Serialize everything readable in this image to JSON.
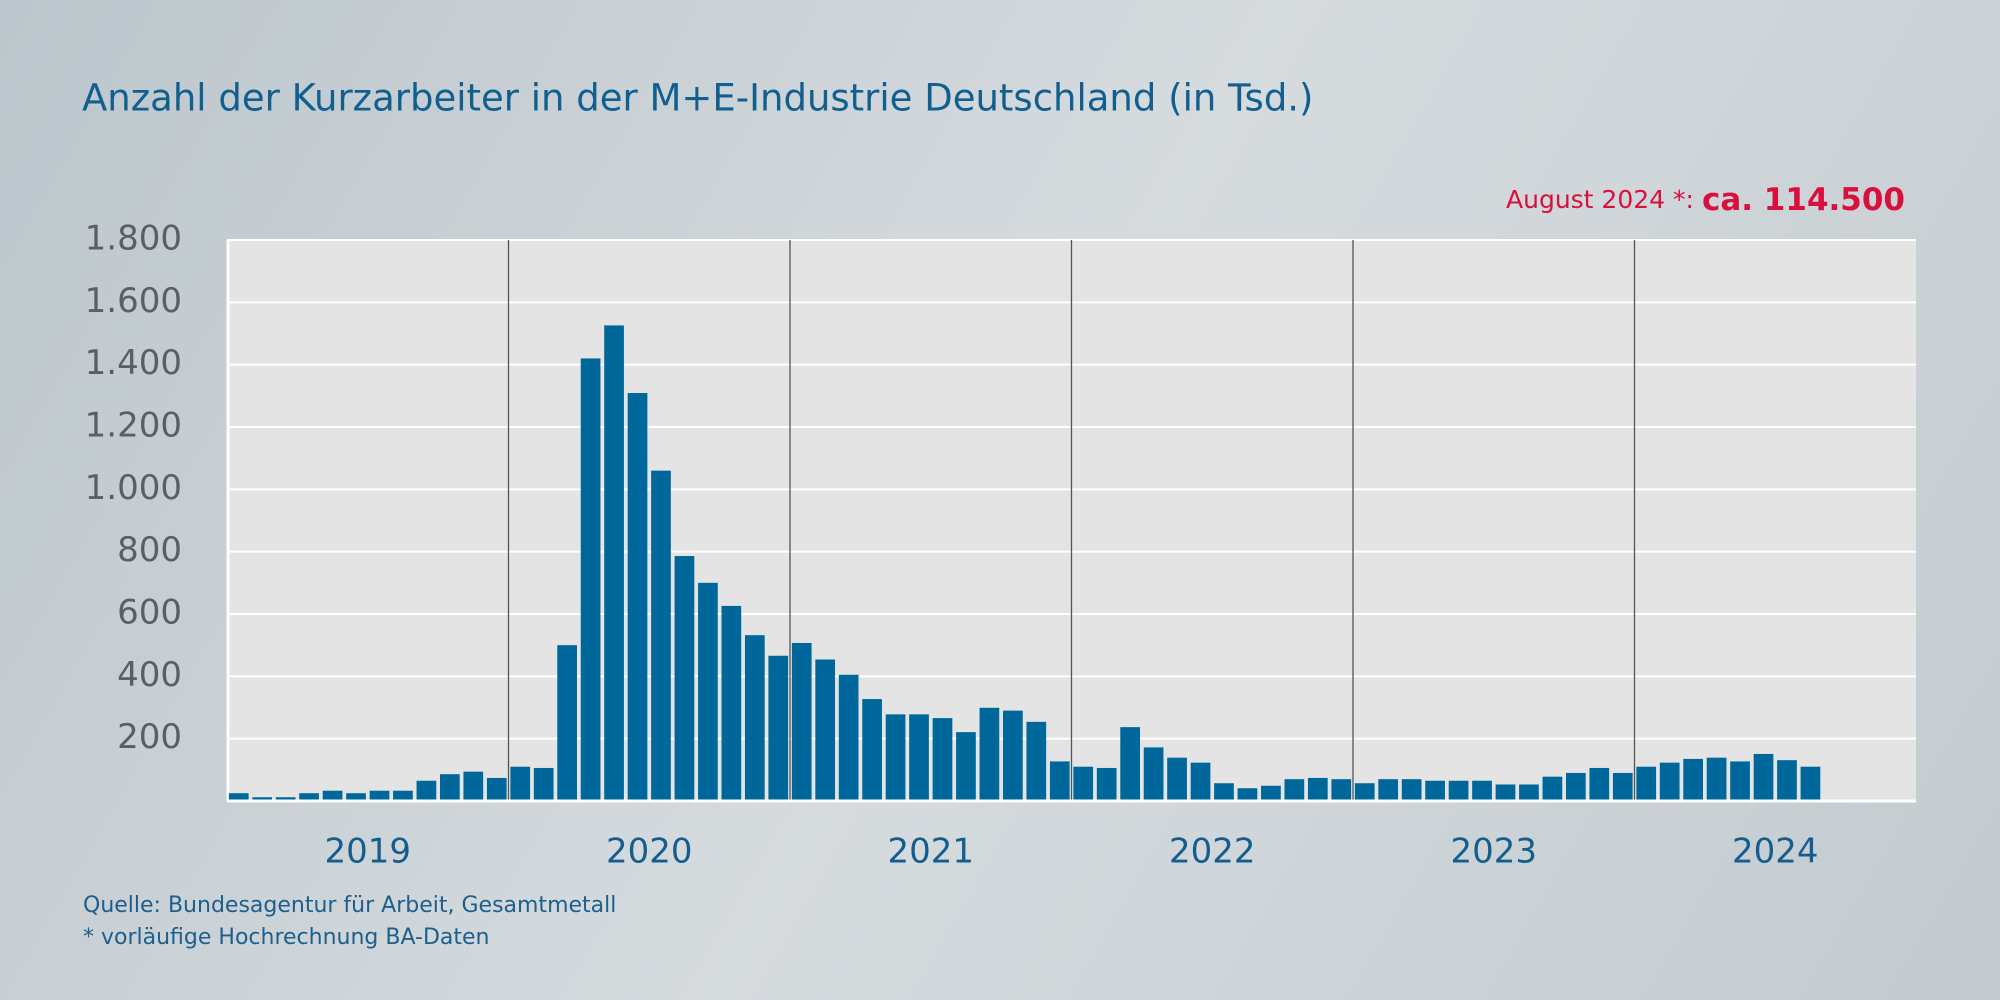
{
  "chart_data": {
    "type": "bar",
    "title": "Anzahl der Kurzarbeiter in der M+E-Industrie Deutschland (in Tsd.)",
    "annotation": {
      "label": "August 2024 *:",
      "value_text": "ca. 114.500"
    },
    "color": "#00679a",
    "groups": [
      {
        "name": "2019",
        "values": [
          25,
          12,
          12,
          25,
          33,
          25,
          33,
          33,
          65,
          86,
          94,
          74
        ]
      },
      {
        "name": "2020",
        "values": [
          110,
          106,
          500,
          1420,
          1526,
          1309,
          1060,
          786,
          700,
          626,
          532,
          466
        ]
      },
      {
        "name": "2021",
        "values": [
          507,
          454,
          405,
          327,
          278,
          278,
          266,
          221,
          299,
          290,
          254,
          127
        ]
      },
      {
        "name": "2022",
        "values": [
          110,
          106,
          237,
          172,
          139,
          123,
          57,
          41,
          49,
          70,
          74,
          70
        ]
      },
      {
        "name": "2023",
        "values": [
          57,
          70,
          70,
          65,
          65,
          65,
          53,
          53,
          78,
          90,
          106,
          90
        ]
      },
      {
        "name": "2024",
        "values": [
          110,
          123,
          135,
          139,
          127,
          151,
          131,
          110
        ]
      }
    ],
    "ylim": [
      0,
      1800
    ],
    "yticks": [
      200,
      400,
      600,
      800,
      {
        "value": 1000,
        "label": "1.000"
      },
      {
        "value": 1200,
        "label": "1.200"
      },
      {
        "value": 1400,
        "label": "1.400"
      },
      {
        "value": 1600,
        "label": "1.600"
      },
      {
        "value": 1800,
        "label": "1.800"
      }
    ],
    "grid": true,
    "sources": [
      "Quelle: Bundesagentur für Arbeit, Gesamtmetall",
      "* vorläufige Hochrechnung BA-Daten"
    ]
  }
}
